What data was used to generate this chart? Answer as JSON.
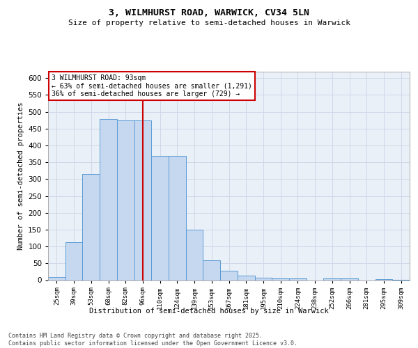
{
  "title_line1": "3, WILMHURST ROAD, WARWICK, CV34 5LN",
  "title_line2": "Size of property relative to semi-detached houses in Warwick",
  "xlabel": "Distribution of semi-detached houses by size in Warwick",
  "ylabel": "Number of semi-detached properties",
  "categories": [
    "25sqm",
    "39sqm",
    "53sqm",
    "68sqm",
    "82sqm",
    "96sqm",
    "110sqm",
    "124sqm",
    "139sqm",
    "153sqm",
    "167sqm",
    "181sqm",
    "195sqm",
    "210sqm",
    "224sqm",
    "238sqm",
    "252sqm",
    "266sqm",
    "281sqm",
    "295sqm",
    "309sqm"
  ],
  "values": [
    10,
    113,
    315,
    478,
    475,
    475,
    368,
    368,
    150,
    59,
    28,
    14,
    8,
    5,
    5,
    0,
    5,
    5,
    0,
    3,
    2
  ],
  "bar_color": "#c5d8f0",
  "bar_edge_color": "#5b9bd5",
  "grid_color": "#d0d8e8",
  "bg_color": "#eaf0f8",
  "vline_x_idx": 5,
  "vline_color": "#cc0000",
  "annotation_line1": "3 WILMHURST ROAD: 93sqm",
  "annotation_line2": "← 63% of semi-detached houses are smaller (1,291)",
  "annotation_line3": "36% of semi-detached houses are larger (729) →",
  "annotation_box_color": "#ffffff",
  "annotation_box_edge": "#cc0000",
  "footer_text": "Contains HM Land Registry data © Crown copyright and database right 2025.\nContains public sector information licensed under the Open Government Licence v3.0.",
  "ylim": [
    0,
    620
  ],
  "yticks": [
    0,
    50,
    100,
    150,
    200,
    250,
    300,
    350,
    400,
    450,
    500,
    550,
    600
  ]
}
